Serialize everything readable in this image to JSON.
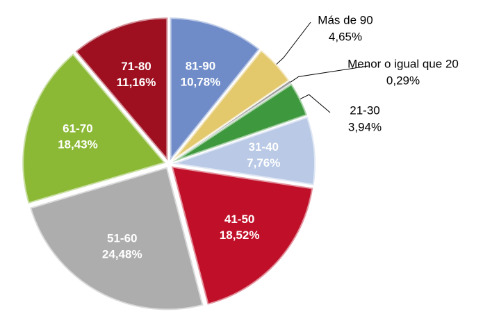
{
  "chart_data": {
    "type": "pie",
    "categories": [
      "81-90",
      "Más de 90",
      "Menor o igual que 20",
      "21-30",
      "31-40",
      "41-50",
      "51-60",
      "61-70",
      "71-80"
    ],
    "values": [
      10.78,
      4.65,
      0.29,
      3.94,
      7.76,
      18.52,
      24.48,
      18.43,
      11.16
    ],
    "value_labels": [
      "10,78%",
      "4,65%",
      "0,29%",
      "3,94%",
      "7,76%",
      "18,52%",
      "24,48%",
      "18,43%",
      "11,16%"
    ],
    "colors": [
      "#6f8cc9",
      "#e3c86c",
      "#1e1e1e",
      "#3e993e",
      "#b9c9e6",
      "#c01029",
      "#adadad",
      "#8bb935",
      "#9e1020"
    ]
  }
}
